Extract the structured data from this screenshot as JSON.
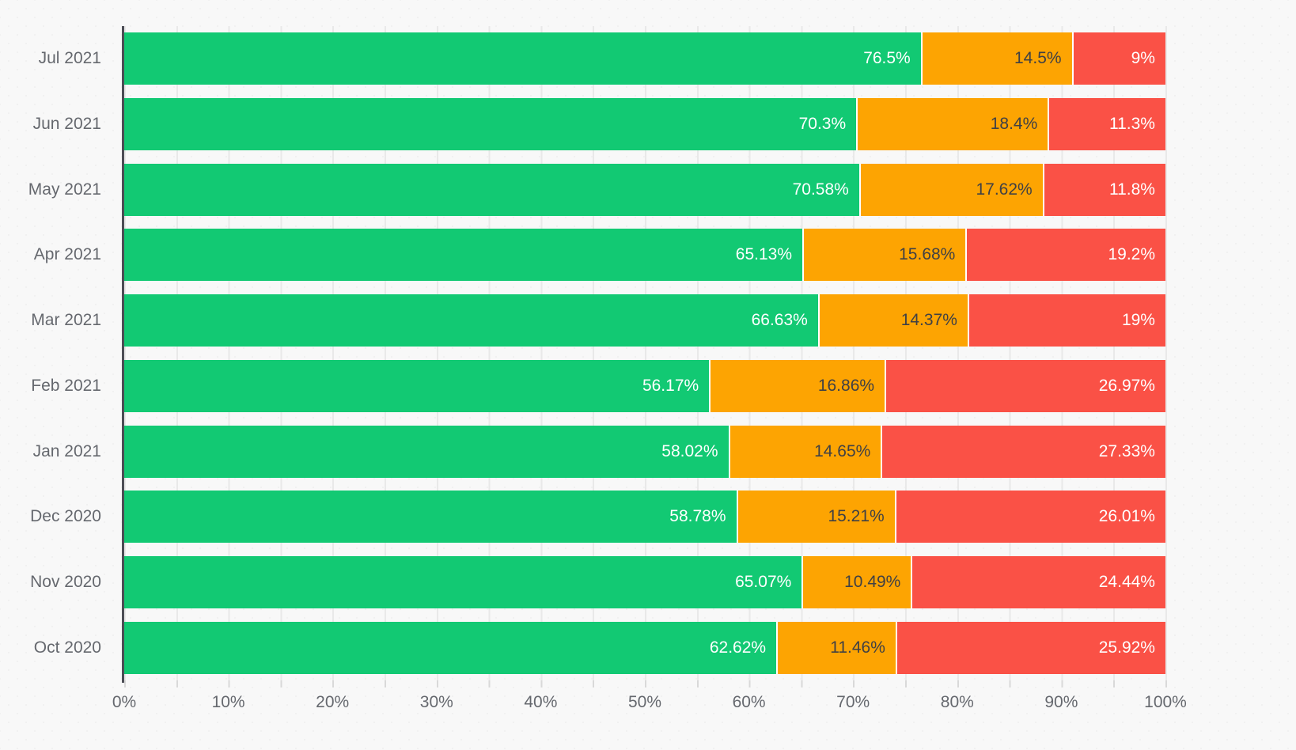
{
  "page": {
    "background_color": "#f8f8f8",
    "axis_line_color": "#4c4d55",
    "gridline_color": "#e9e9e9",
    "tick_color": "#d9d9d9",
    "axis_text_color": "#65686e"
  },
  "chart_data": {
    "type": "bar",
    "orientation": "horizontal",
    "stacked": true,
    "title": "",
    "xlabel": "",
    "ylabel": "",
    "legend": false,
    "grid": true,
    "categories": [
      "Jul 2021",
      "Jun 2021",
      "May 2021",
      "Apr 2021",
      "Mar 2021",
      "Feb 2021",
      "Jan 2021",
      "Dec 2020",
      "Nov 2020",
      "Oct 2020"
    ],
    "series": [
      {
        "name": "green",
        "color": "#12c973",
        "label_color": "#ffffff",
        "values": [
          76.5,
          70.3,
          70.58,
          65.13,
          66.63,
          56.17,
          58.02,
          58.78,
          65.07,
          62.62
        ],
        "labels": [
          "76.5%",
          "70.3%",
          "70.58%",
          "65.13%",
          "66.63%",
          "56.17%",
          "58.02%",
          "58.78%",
          "65.07%",
          "62.62%"
        ]
      },
      {
        "name": "orange",
        "color": "#fda402",
        "label_color": "#3f4045",
        "values": [
          14.5,
          18.4,
          17.62,
          15.68,
          14.37,
          16.86,
          14.65,
          15.21,
          10.49,
          11.46
        ],
        "labels": [
          "14.5%",
          "18.4%",
          "17.62%",
          "15.68%",
          "14.37%",
          "16.86%",
          "14.65%",
          "15.21%",
          "10.49%",
          "11.46%"
        ]
      },
      {
        "name": "red",
        "color": "#fa5146",
        "label_color": "#ffffff",
        "values": [
          9,
          11.3,
          11.8,
          19.2,
          19,
          26.97,
          27.33,
          26.01,
          24.44,
          25.92
        ],
        "labels": [
          "9%",
          "11.3%",
          "11.8%",
          "19.2%",
          "19%",
          "26.97%",
          "27.33%",
          "26.01%",
          "24.44%",
          "25.92%"
        ]
      }
    ],
    "x_axis": {
      "min": 0,
      "max": 100,
      "major_label_step": 10,
      "minor_grid_step": 5,
      "tick_labels": [
        "0%",
        "10%",
        "20%",
        "30%",
        "40%",
        "50%",
        "60%",
        "70%",
        "80%",
        "90%",
        "100%"
      ]
    }
  }
}
